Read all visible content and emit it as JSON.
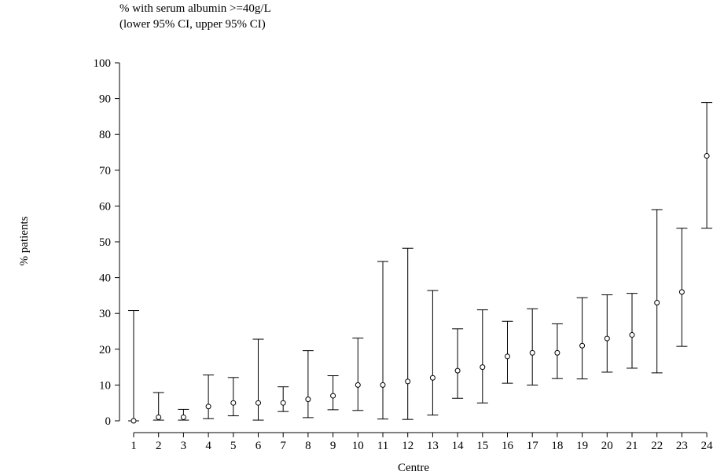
{
  "chart_data": {
    "type": "scatter",
    "title": "% with serum albumin >=40g/L",
    "subtitle": "(lower 95% CI, upper 95% CI)",
    "xlabel": "Centre",
    "ylabel": "% patients",
    "ylim": [
      0,
      100
    ],
    "yticks": [
      0,
      10,
      20,
      30,
      40,
      50,
      60,
      70,
      80,
      90,
      100
    ],
    "grid": false,
    "categories": [
      "1",
      "2",
      "3",
      "4",
      "5",
      "6",
      "7",
      "8",
      "9",
      "10",
      "11",
      "12",
      "13",
      "14",
      "15",
      "16",
      "17",
      "18",
      "19",
      "20",
      "21",
      "22",
      "23",
      "24"
    ],
    "values": [
      0,
      1,
      1,
      4,
      5,
      5,
      5,
      6,
      7,
      10,
      10,
      11,
      12,
      14,
      15,
      18,
      19,
      19,
      21,
      23,
      24,
      33,
      36,
      74
    ],
    "lower_ci": [
      0,
      0.2,
      0.2,
      0.6,
      1.4,
      0.2,
      2.6,
      0.9,
      3.1,
      2.9,
      0.5,
      0.4,
      1.6,
      6.3,
      5,
      10.5,
      10,
      11.8,
      11.7,
      13.6,
      14.7,
      13.4,
      20.8,
      53.8
    ],
    "upper_ci": [
      30.8,
      7.9,
      3.2,
      12.8,
      12.1,
      22.8,
      9.5,
      19.6,
      12.6,
      23.1,
      44.5,
      48.2,
      36.4,
      25.7,
      31,
      27.8,
      31.3,
      27.1,
      34.4,
      35.2,
      35.6,
      59,
      53.8,
      88.9
    ]
  }
}
